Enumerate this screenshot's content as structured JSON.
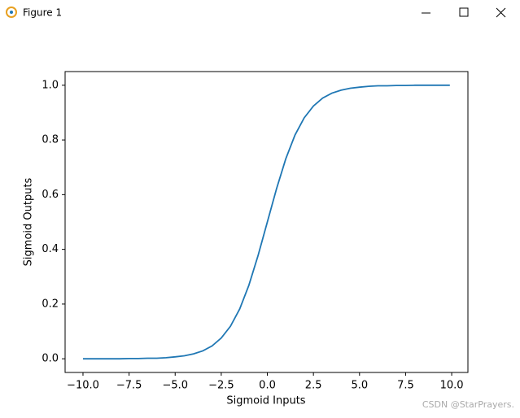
{
  "window_title": "Figure 1",
  "watermark": "CSDN @StarPrayers.",
  "chart_data": {
    "type": "line",
    "x_label": "Sigmoid Inputs",
    "y_label": "Sigmoid Outputs",
    "x": [
      -10,
      -9.5,
      -9,
      -8.5,
      -8,
      -7.5,
      -7,
      -6.5,
      -6,
      -5.5,
      -5,
      -4.5,
      -4,
      -3.5,
      -3,
      -2.5,
      -2,
      -1.5,
      -1,
      -0.5,
      0,
      0.5,
      1,
      1.5,
      2,
      2.5,
      3,
      3.5,
      4,
      4.5,
      5,
      5.5,
      6,
      6.5,
      7,
      7.5,
      8,
      8.5,
      9,
      9.5,
      9.9
    ],
    "values": [
      0.0,
      0.0,
      0.0,
      0.0,
      0.0,
      0.001,
      0.001,
      0.002,
      0.002,
      0.004,
      0.007,
      0.011,
      0.018,
      0.029,
      0.047,
      0.076,
      0.119,
      0.182,
      0.269,
      0.378,
      0.5,
      0.622,
      0.731,
      0.818,
      0.881,
      0.924,
      0.953,
      0.971,
      0.982,
      0.989,
      0.993,
      0.996,
      0.998,
      0.998,
      0.999,
      0.999,
      1.0,
      1.0,
      1.0,
      1.0,
      1.0
    ],
    "color": "#1f77b4",
    "xlim": [
      -10.97,
      10.88
    ],
    "ylim": [
      -0.05,
      1.05
    ],
    "xticks": [
      {
        "value": -10,
        "label": "−10.0"
      },
      {
        "value": -7.5,
        "label": "−7.5"
      },
      {
        "value": -5,
        "label": "−5.0"
      },
      {
        "value": -2.5,
        "label": "−2.5"
      },
      {
        "value": 0,
        "label": "0.0"
      },
      {
        "value": 2.5,
        "label": "2.5"
      },
      {
        "value": 5,
        "label": "5.0"
      },
      {
        "value": 7.5,
        "label": "7.5"
      },
      {
        "value": 10,
        "label": "10.0"
      }
    ],
    "yticks": [
      {
        "value": 0,
        "label": "0.0"
      },
      {
        "value": 0.2,
        "label": "0.2"
      },
      {
        "value": 0.4,
        "label": "0.4"
      },
      {
        "value": 0.6,
        "label": "0.6"
      },
      {
        "value": 0.8,
        "label": "0.8"
      },
      {
        "value": 1.0,
        "label": "1.0"
      }
    ]
  }
}
